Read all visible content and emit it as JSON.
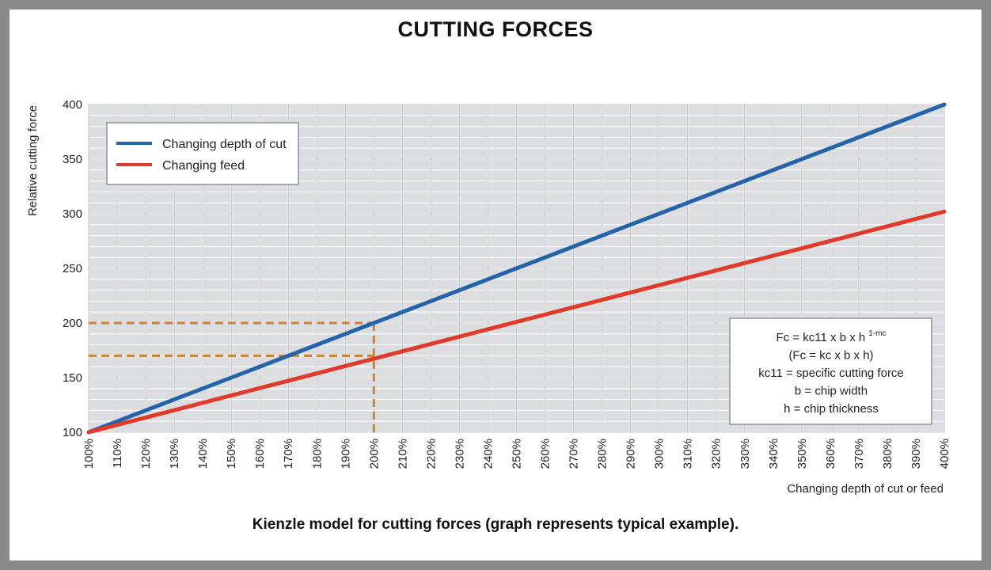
{
  "page": {
    "title": "CUTTING FORCES",
    "caption": "Kienzle model for cutting forces (graph represents typical example)."
  },
  "chart_data": {
    "type": "line",
    "title": "CUTTING FORCES",
    "xlabel": "Changing depth of cut or feed",
    "ylabel": "Relative cutting force",
    "x": [
      100,
      400
    ],
    "x_ticks": [
      "100%",
      "110%",
      "120%",
      "130%",
      "140%",
      "150%",
      "160%",
      "170%",
      "180%",
      "190%",
      "200%",
      "210%",
      "220%",
      "230%",
      "240%",
      "250%",
      "260%",
      "270%",
      "280%",
      "290%",
      "300%",
      "310%",
      "320%",
      "330%",
      "340%",
      "350%",
      "360%",
      "370%",
      "380%",
      "390%",
      "400%"
    ],
    "y_ticks": [
      "100",
      "150",
      "200",
      "250",
      "300",
      "350",
      "400"
    ],
    "xlim": [
      100,
      400
    ],
    "ylim": [
      100,
      400
    ],
    "grid": true,
    "legend_position": "top-left",
    "series": [
      {
        "name": "Changing depth of cut",
        "color": "#2563a8",
        "x": [
          100,
          400
        ],
        "y": [
          100,
          400
        ]
      },
      {
        "name": "Changing feed",
        "color": "#e03a2a",
        "x": [
          100,
          400
        ],
        "y": [
          100,
          302
        ]
      }
    ],
    "reference_lines": [
      {
        "color": "#c98533",
        "points": [
          [
            100,
            200
          ],
          [
            200,
            200
          ]
        ]
      },
      {
        "color": "#c98533",
        "points": [
          [
            100,
            170
          ],
          [
            200,
            170
          ]
        ]
      },
      {
        "color": "#c98533",
        "points": [
          [
            200,
            200
          ],
          [
            200,
            100
          ]
        ]
      }
    ],
    "formula_box": {
      "lines": [
        {
          "main": "Fc = kc11 x b x h",
          "sup": "1-mc"
        },
        {
          "main": "(Fc = kc x b x h)",
          "sup": ""
        },
        {
          "main": "kc11 = specific cutting force",
          "sup": ""
        },
        {
          "main": "b = chip width",
          "sup": ""
        },
        {
          "main": "h = chip thickness",
          "sup": ""
        }
      ]
    }
  }
}
